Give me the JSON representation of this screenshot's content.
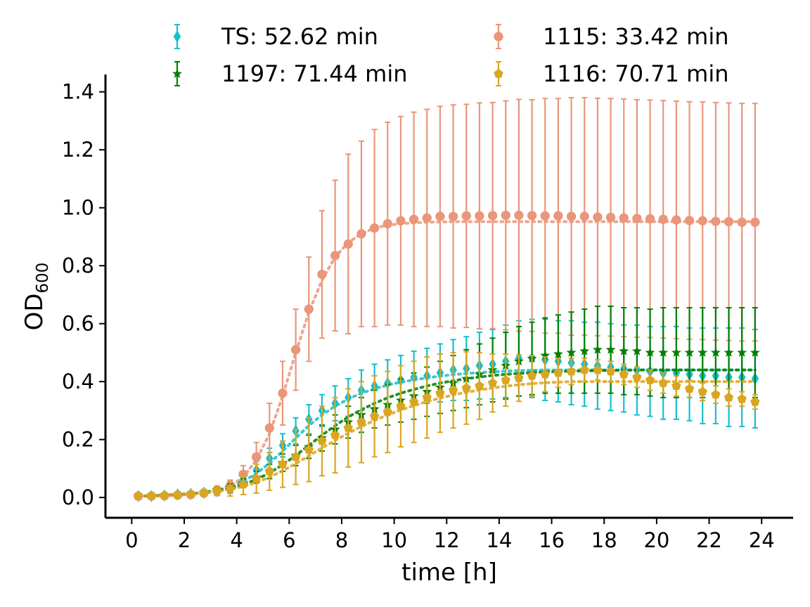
{
  "chart_data": {
    "type": "scatter",
    "xlabel": "time [h]",
    "ylabel": {
      "main": "OD",
      "sub": "600"
    },
    "xlim": [
      -1,
      25.2
    ],
    "ylim": [
      -0.07,
      1.46
    ],
    "xticks": [
      0,
      2,
      4,
      6,
      8,
      10,
      12,
      14,
      16,
      18,
      20,
      22,
      24
    ],
    "yticks": [
      0.0,
      0.2,
      0.4,
      0.6,
      0.8,
      1.0,
      1.2,
      1.4
    ],
    "grid": false,
    "legend_position": "top",
    "x": [
      0.25,
      0.75,
      1.25,
      1.75,
      2.25,
      2.75,
      3.25,
      3.75,
      4.25,
      4.75,
      5.25,
      5.75,
      6.25,
      6.75,
      7.25,
      7.75,
      8.25,
      8.75,
      9.25,
      9.75,
      10.25,
      10.75,
      11.25,
      11.75,
      12.25,
      12.75,
      13.25,
      13.75,
      14.25,
      14.75,
      15.25,
      15.75,
      16.25,
      16.75,
      17.25,
      17.75,
      18.25,
      18.75,
      19.25,
      19.75,
      20.25,
      20.75,
      21.25,
      21.75,
      22.25,
      22.75,
      23.25,
      23.75
    ],
    "series": [
      {
        "name": "TS: 52.62 min",
        "color": "#17becf",
        "marker": "diamond",
        "values": [
          0.005,
          0.005,
          0.007,
          0.01,
          0.012,
          0.016,
          0.022,
          0.035,
          0.06,
          0.095,
          0.135,
          0.18,
          0.23,
          0.27,
          0.3,
          0.325,
          0.345,
          0.37,
          0.385,
          0.395,
          0.405,
          0.415,
          0.42,
          0.43,
          0.44,
          0.445,
          0.455,
          0.46,
          0.47,
          0.48,
          0.48,
          0.475,
          0.47,
          0.465,
          0.46,
          0.455,
          0.45,
          0.445,
          0.44,
          0.435,
          0.43,
          0.43,
          0.425,
          0.42,
          0.42,
          0.415,
          0.415,
          0.41
        ],
        "errors": [
          0.01,
          0.01,
          0.01,
          0.01,
          0.01,
          0.012,
          0.015,
          0.02,
          0.025,
          0.03,
          0.035,
          0.04,
          0.045,
          0.05,
          0.055,
          0.06,
          0.065,
          0.07,
          0.075,
          0.08,
          0.085,
          0.09,
          0.095,
          0.1,
          0.105,
          0.11,
          0.115,
          0.12,
          0.125,
          0.13,
          0.135,
          0.14,
          0.14,
          0.145,
          0.145,
          0.15,
          0.15,
          0.15,
          0.155,
          0.155,
          0.16,
          0.16,
          0.16,
          0.165,
          0.165,
          0.17,
          0.17,
          0.17
        ],
        "fit": [
          0.005,
          0.005,
          0.007,
          0.01,
          0.013,
          0.018,
          0.026,
          0.038,
          0.056,
          0.083,
          0.118,
          0.16,
          0.205,
          0.248,
          0.285,
          0.315,
          0.34,
          0.36,
          0.375,
          0.388,
          0.398,
          0.406,
          0.413,
          0.419,
          0.424,
          0.428,
          0.431,
          0.434,
          0.436,
          0.438,
          0.439,
          0.44,
          0.44,
          0.44,
          0.44,
          0.44,
          0.44,
          0.44,
          0.44,
          0.44,
          0.44,
          0.44,
          0.44,
          0.44,
          0.44,
          0.44,
          0.44,
          0.44
        ]
      },
      {
        "name": "1115: 33.42 min",
        "color": "#e9967a",
        "marker": "circle",
        "values": [
          0.005,
          0.005,
          0.006,
          0.008,
          0.01,
          0.015,
          0.025,
          0.04,
          0.08,
          0.14,
          0.24,
          0.36,
          0.51,
          0.65,
          0.77,
          0.835,
          0.875,
          0.91,
          0.93,
          0.945,
          0.955,
          0.96,
          0.965,
          0.97,
          0.97,
          0.972,
          0.972,
          0.973,
          0.974,
          0.974,
          0.973,
          0.972,
          0.972,
          0.97,
          0.97,
          0.968,
          0.967,
          0.965,
          0.963,
          0.962,
          0.96,
          0.958,
          0.956,
          0.955,
          0.953,
          0.952,
          0.95,
          0.95
        ],
        "errors": [
          0.005,
          0.005,
          0.005,
          0.006,
          0.008,
          0.01,
          0.015,
          0.02,
          0.03,
          0.05,
          0.085,
          0.11,
          0.14,
          0.18,
          0.22,
          0.26,
          0.31,
          0.32,
          0.34,
          0.35,
          0.36,
          0.37,
          0.375,
          0.38,
          0.385,
          0.385,
          0.39,
          0.39,
          0.395,
          0.4,
          0.4,
          0.405,
          0.405,
          0.41,
          0.41,
          0.41,
          0.41,
          0.41,
          0.41,
          0.41,
          0.41,
          0.41,
          0.41,
          0.41,
          0.41,
          0.41,
          0.41,
          0.41
        ],
        "fit": [
          0.005,
          0.005,
          0.006,
          0.008,
          0.011,
          0.016,
          0.025,
          0.04,
          0.07,
          0.13,
          0.22,
          0.35,
          0.5,
          0.64,
          0.75,
          0.83,
          0.88,
          0.91,
          0.93,
          0.94,
          0.945,
          0.948,
          0.95,
          0.951,
          0.952,
          0.952,
          0.952,
          0.952,
          0.952,
          0.952,
          0.952,
          0.952,
          0.952,
          0.952,
          0.952,
          0.952,
          0.952,
          0.952,
          0.952,
          0.952,
          0.952,
          0.952,
          0.952,
          0.952,
          0.952,
          0.952,
          0.952,
          0.952
        ]
      },
      {
        "name": "1197: 71.44 min",
        "color": "#008000",
        "marker": "star",
        "values": [
          0.005,
          0.006,
          0.008,
          0.01,
          0.013,
          0.018,
          0.025,
          0.035,
          0.05,
          0.07,
          0.09,
          0.12,
          0.145,
          0.175,
          0.205,
          0.235,
          0.26,
          0.285,
          0.305,
          0.32,
          0.335,
          0.35,
          0.365,
          0.38,
          0.395,
          0.41,
          0.425,
          0.44,
          0.455,
          0.47,
          0.48,
          0.49,
          0.495,
          0.5,
          0.505,
          0.51,
          0.51,
          0.505,
          0.505,
          0.5,
          0.5,
          0.5,
          0.5,
          0.5,
          0.5,
          0.5,
          0.5,
          0.5
        ],
        "errors": [
          0.005,
          0.005,
          0.005,
          0.005,
          0.006,
          0.008,
          0.01,
          0.012,
          0.015,
          0.02,
          0.025,
          0.03,
          0.035,
          0.04,
          0.045,
          0.05,
          0.055,
          0.06,
          0.065,
          0.07,
          0.075,
          0.08,
          0.085,
          0.09,
          0.095,
          0.1,
          0.105,
          0.11,
          0.115,
          0.12,
          0.125,
          0.13,
          0.135,
          0.14,
          0.145,
          0.15,
          0.15,
          0.15,
          0.15,
          0.15,
          0.155,
          0.155,
          0.155,
          0.155,
          0.155,
          0.155,
          0.155,
          0.155
        ],
        "fit": [
          0.005,
          0.006,
          0.008,
          0.01,
          0.013,
          0.017,
          0.023,
          0.032,
          0.045,
          0.062,
          0.085,
          0.113,
          0.145,
          0.18,
          0.215,
          0.248,
          0.278,
          0.303,
          0.325,
          0.344,
          0.36,
          0.373,
          0.385,
          0.395,
          0.403,
          0.41,
          0.416,
          0.421,
          0.425,
          0.428,
          0.431,
          0.433,
          0.435,
          0.436,
          0.437,
          0.438,
          0.439,
          0.439,
          0.44,
          0.44,
          0.44,
          0.44,
          0.44,
          0.44,
          0.44,
          0.44,
          0.44,
          0.44
        ]
      },
      {
        "name": "1116: 70.71 min",
        "color": "#daa520",
        "marker": "pentagon",
        "values": [
          0.005,
          0.006,
          0.007,
          0.009,
          0.012,
          0.016,
          0.022,
          0.03,
          0.045,
          0.065,
          0.09,
          0.115,
          0.14,
          0.165,
          0.195,
          0.215,
          0.24,
          0.26,
          0.28,
          0.295,
          0.315,
          0.33,
          0.345,
          0.36,
          0.37,
          0.378,
          0.385,
          0.395,
          0.405,
          0.412,
          0.42,
          0.425,
          0.43,
          0.435,
          0.44,
          0.44,
          0.435,
          0.425,
          0.415,
          0.405,
          0.395,
          0.385,
          0.375,
          0.365,
          0.355,
          0.345,
          0.34,
          0.33
        ],
        "errors": [
          0.005,
          0.005,
          0.005,
          0.006,
          0.008,
          0.01,
          0.015,
          0.025,
          0.035,
          0.05,
          0.065,
          0.08,
          0.095,
          0.11,
          0.12,
          0.13,
          0.135,
          0.14,
          0.14,
          0.14,
          0.14,
          0.14,
          0.14,
          0.135,
          0.13,
          0.125,
          0.115,
          0.1,
          0.09,
          0.08,
          0.07,
          0.06,
          0.05,
          0.045,
          0.04,
          0.035,
          0.035,
          0.035,
          0.035,
          0.035,
          0.035,
          0.035,
          0.03,
          0.03,
          0.03,
          0.03,
          0.025,
          0.025
        ],
        "fit": [
          0.005,
          0.006,
          0.007,
          0.009,
          0.012,
          0.016,
          0.021,
          0.028,
          0.038,
          0.052,
          0.07,
          0.092,
          0.117,
          0.144,
          0.171,
          0.197,
          0.222,
          0.245,
          0.266,
          0.285,
          0.302,
          0.317,
          0.331,
          0.343,
          0.354,
          0.363,
          0.371,
          0.378,
          0.384,
          0.389,
          0.393,
          0.396,
          0.398,
          0.4,
          0.4,
          0.4,
          0.4,
          0.4,
          0.4,
          0.4,
          0.4,
          0.4,
          0.4,
          0.4,
          0.4,
          0.4,
          0.4,
          0.4
        ]
      }
    ],
    "legend_order": [
      "TS: 52.62 min",
      "1115: 33.42 min",
      "1197: 71.44 min",
      "1116: 70.71 min"
    ]
  }
}
